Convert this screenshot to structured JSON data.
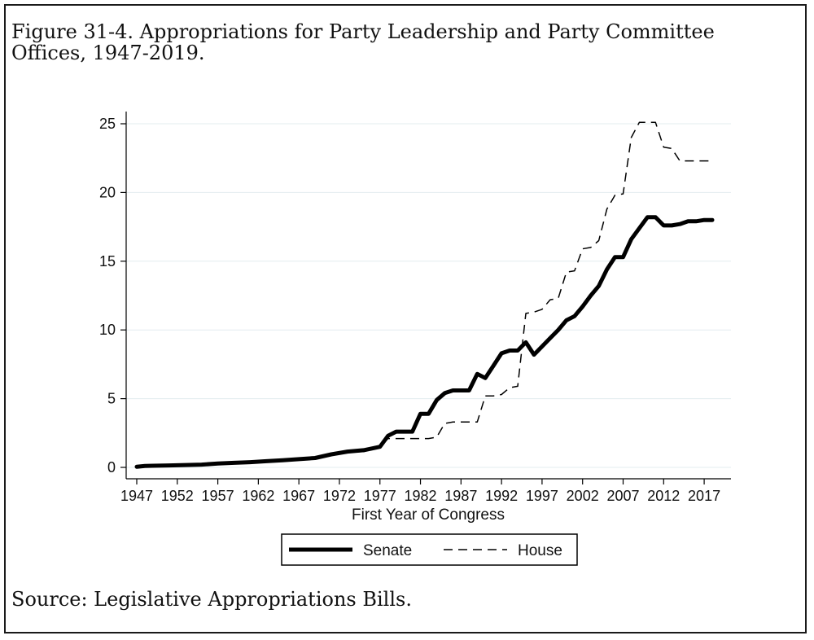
{
  "figure": {
    "caption": "Figure 31-4. Appropriations for Party Leadership and Party Committee Offices, 1947-2019.",
    "source": "Source: Legislative Appropriations Bills."
  },
  "chart_data": {
    "type": "line",
    "title": "",
    "xlabel": "First Year of Congress",
    "ylabel": "",
    "xlim": [
      1947,
      2019
    ],
    "ylim": [
      0,
      25
    ],
    "x_ticks": [
      1947,
      1952,
      1957,
      1962,
      1967,
      1972,
      1977,
      1982,
      1987,
      1992,
      1997,
      2002,
      2007,
      2012,
      2017
    ],
    "y_ticks": [
      0,
      5,
      10,
      15,
      20,
      25
    ],
    "grid": true,
    "legend": "bottom",
    "series": [
      {
        "name": "Senate",
        "style": "solid-thick",
        "color": "#000000",
        "points": [
          [
            1947,
            0.05
          ],
          [
            1948,
            0.1
          ],
          [
            1949,
            0.12
          ],
          [
            1951,
            0.14
          ],
          [
            1953,
            0.17
          ],
          [
            1955,
            0.2
          ],
          [
            1957,
            0.28
          ],
          [
            1959,
            0.33
          ],
          [
            1961,
            0.38
          ],
          [
            1963,
            0.45
          ],
          [
            1965,
            0.52
          ],
          [
            1967,
            0.6
          ],
          [
            1969,
            0.68
          ],
          [
            1971,
            0.95
          ],
          [
            1973,
            1.15
          ],
          [
            1975,
            1.25
          ],
          [
            1977,
            1.5
          ],
          [
            1978,
            2.3
          ],
          [
            1979,
            2.6
          ],
          [
            1981,
            2.6
          ],
          [
            1982,
            3.9
          ],
          [
            1983,
            3.9
          ],
          [
            1984,
            4.9
          ],
          [
            1985,
            5.4
          ],
          [
            1986,
            5.6
          ],
          [
            1988,
            5.6
          ],
          [
            1989,
            6.8
          ],
          [
            1990,
            6.5
          ],
          [
            1991,
            7.4
          ],
          [
            1992,
            8.3
          ],
          [
            1993,
            8.5
          ],
          [
            1994,
            8.5
          ],
          [
            1995,
            9.1
          ],
          [
            1996,
            8.2
          ],
          [
            1997,
            8.8
          ],
          [
            1998,
            9.4
          ],
          [
            1999,
            10.0
          ],
          [
            2000,
            10.7
          ],
          [
            2001,
            11.0
          ],
          [
            2002,
            11.7
          ],
          [
            2003,
            12.5
          ],
          [
            2004,
            13.2
          ],
          [
            2005,
            14.4
          ],
          [
            2006,
            15.3
          ],
          [
            2007,
            15.3
          ],
          [
            2008,
            16.6
          ],
          [
            2009,
            17.4
          ],
          [
            2010,
            18.2
          ],
          [
            2011,
            18.2
          ],
          [
            2012,
            17.6
          ],
          [
            2013,
            17.6
          ],
          [
            2014,
            17.7
          ],
          [
            2015,
            17.9
          ],
          [
            2016,
            17.9
          ],
          [
            2017,
            18.0
          ],
          [
            2018,
            18.0
          ]
        ]
      },
      {
        "name": "House",
        "style": "dashed",
        "color": "#000000",
        "points": [
          [
            1947,
            0.05
          ],
          [
            1949,
            0.1
          ],
          [
            1952,
            0.15
          ],
          [
            1955,
            0.2
          ],
          [
            1957,
            0.25
          ],
          [
            1960,
            0.3
          ],
          [
            1963,
            0.4
          ],
          [
            1966,
            0.55
          ],
          [
            1969,
            0.7
          ],
          [
            1971,
            0.9
          ],
          [
            1973,
            1.1
          ],
          [
            1975,
            1.15
          ],
          [
            1976,
            1.3
          ],
          [
            1977,
            1.5
          ],
          [
            1978,
            2.1
          ],
          [
            1979,
            2.1
          ],
          [
            1983,
            2.1
          ],
          [
            1984,
            2.2
          ],
          [
            1985,
            3.2
          ],
          [
            1986,
            3.3
          ],
          [
            1989,
            3.3
          ],
          [
            1990,
            5.2
          ],
          [
            1991,
            5.2
          ],
          [
            1992,
            5.3
          ],
          [
            1993,
            5.8
          ],
          [
            1994,
            5.9
          ],
          [
            1995,
            11.2
          ],
          [
            1996,
            11.3
          ],
          [
            1997,
            11.5
          ],
          [
            1998,
            12.2
          ],
          [
            1999,
            12.3
          ],
          [
            2000,
            14.2
          ],
          [
            2001,
            14.3
          ],
          [
            2002,
            15.9
          ],
          [
            2003,
            16.0
          ],
          [
            2004,
            16.5
          ],
          [
            2005,
            18.8
          ],
          [
            2006,
            19.8
          ],
          [
            2007,
            19.9
          ],
          [
            2008,
            24.0
          ],
          [
            2009,
            25.1
          ],
          [
            2010,
            25.1
          ],
          [
            2011,
            25.1
          ],
          [
            2012,
            23.3
          ],
          [
            2013,
            23.2
          ],
          [
            2014,
            22.3
          ],
          [
            2015,
            22.3
          ],
          [
            2016,
            22.3
          ],
          [
            2017,
            22.3
          ],
          [
            2018,
            22.3
          ]
        ]
      }
    ]
  }
}
